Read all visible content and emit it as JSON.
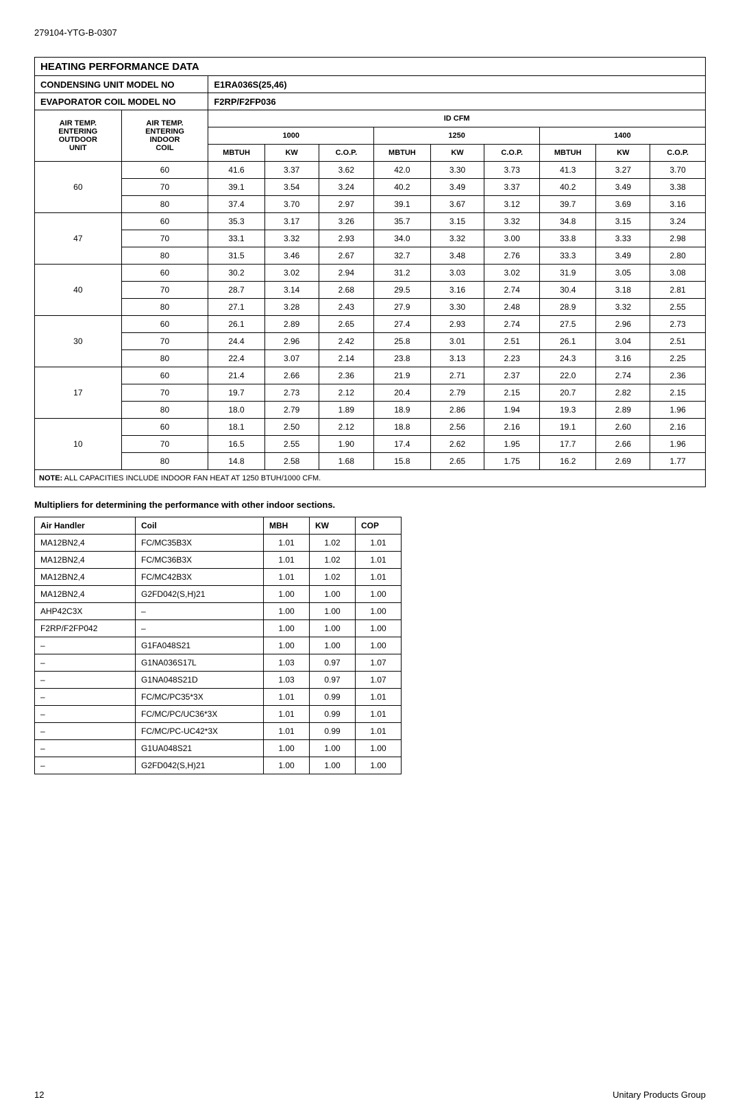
{
  "doc_id": "279104-YTG-B-0307",
  "table1": {
    "title": "HEATING PERFORMANCE DATA",
    "cond_label": "CONDENSING UNIT MODEL NO",
    "cond_value": "E1RA036S(25,46)",
    "evap_label": "EVAPORATOR COIL MODEL NO",
    "evap_value": "F2RP/F2FP036",
    "air_outdoor": "AIR TEMP. ENTERING OUTDOOR UNIT",
    "air_indoor": "AIR TEMP. ENTERING INDOOR COIL",
    "idcfm": "ID CFM",
    "cfm_cols": [
      "1000",
      "1250",
      "1400"
    ],
    "sub_cols": [
      "MBTUH",
      "KW",
      "C.O.P."
    ],
    "groups": [
      {
        "out": "60",
        "rows": [
          {
            "in": "60",
            "v": [
              "41.6",
              "3.37",
              "3.62",
              "42.0",
              "3.30",
              "3.73",
              "41.3",
              "3.27",
              "3.70"
            ]
          },
          {
            "in": "70",
            "v": [
              "39.1",
              "3.54",
              "3.24",
              "40.2",
              "3.49",
              "3.37",
              "40.2",
              "3.49",
              "3.38"
            ]
          },
          {
            "in": "80",
            "v": [
              "37.4",
              "3.70",
              "2.97",
              "39.1",
              "3.67",
              "3.12",
              "39.7",
              "3.69",
              "3.16"
            ]
          }
        ]
      },
      {
        "out": "47",
        "rows": [
          {
            "in": "60",
            "v": [
              "35.3",
              "3.17",
              "3.26",
              "35.7",
              "3.15",
              "3.32",
              "34.8",
              "3.15",
              "3.24"
            ]
          },
          {
            "in": "70",
            "v": [
              "33.1",
              "3.32",
              "2.93",
              "34.0",
              "3.32",
              "3.00",
              "33.8",
              "3.33",
              "2.98"
            ]
          },
          {
            "in": "80",
            "v": [
              "31.5",
              "3.46",
              "2.67",
              "32.7",
              "3.48",
              "2.76",
              "33.3",
              "3.49",
              "2.80"
            ]
          }
        ]
      },
      {
        "out": "40",
        "rows": [
          {
            "in": "60",
            "v": [
              "30.2",
              "3.02",
              "2.94",
              "31.2",
              "3.03",
              "3.02",
              "31.9",
              "3.05",
              "3.08"
            ]
          },
          {
            "in": "70",
            "v": [
              "28.7",
              "3.14",
              "2.68",
              "29.5",
              "3.16",
              "2.74",
              "30.4",
              "3.18",
              "2.81"
            ]
          },
          {
            "in": "80",
            "v": [
              "27.1",
              "3.28",
              "2.43",
              "27.9",
              "3.30",
              "2.48",
              "28.9",
              "3.32",
              "2.55"
            ]
          }
        ]
      },
      {
        "out": "30",
        "rows": [
          {
            "in": "60",
            "v": [
              "26.1",
              "2.89",
              "2.65",
              "27.4",
              "2.93",
              "2.74",
              "27.5",
              "2.96",
              "2.73"
            ]
          },
          {
            "in": "70",
            "v": [
              "24.4",
              "2.96",
              "2.42",
              "25.8",
              "3.01",
              "2.51",
              "26.1",
              "3.04",
              "2.51"
            ]
          },
          {
            "in": "80",
            "v": [
              "22.4",
              "3.07",
              "2.14",
              "23.8",
              "3.13",
              "2.23",
              "24.3",
              "3.16",
              "2.25"
            ]
          }
        ]
      },
      {
        "out": "17",
        "rows": [
          {
            "in": "60",
            "v": [
              "21.4",
              "2.66",
              "2.36",
              "21.9",
              "2.71",
              "2.37",
              "22.0",
              "2.74",
              "2.36"
            ]
          },
          {
            "in": "70",
            "v": [
              "19.7",
              "2.73",
              "2.12",
              "20.4",
              "2.79",
              "2.15",
              "20.7",
              "2.82",
              "2.15"
            ]
          },
          {
            "in": "80",
            "v": [
              "18.0",
              "2.79",
              "1.89",
              "18.9",
              "2.86",
              "1.94",
              "19.3",
              "2.89",
              "1.96"
            ]
          }
        ]
      },
      {
        "out": "10",
        "rows": [
          {
            "in": "60",
            "v": [
              "18.1",
              "2.50",
              "2.12",
              "18.8",
              "2.56",
              "2.16",
              "19.1",
              "2.60",
              "2.16"
            ]
          },
          {
            "in": "70",
            "v": [
              "16.5",
              "2.55",
              "1.90",
              "17.4",
              "2.62",
              "1.95",
              "17.7",
              "2.66",
              "1.96"
            ]
          },
          {
            "in": "80",
            "v": [
              "14.8",
              "2.58",
              "1.68",
              "15.8",
              "2.65",
              "1.75",
              "16.2",
              "2.69",
              "1.77"
            ]
          }
        ]
      }
    ],
    "note_label": "NOTE:",
    "note_text": " ALL CAPACITIES INCLUDE INDOOR FAN HEAT AT 1250 BTUH/1000 CFM."
  },
  "subhead": "Multipliers for determining the performance with other indoor sections.",
  "table2": {
    "cols": [
      "Air Handler",
      "Coil",
      "MBH",
      "KW",
      "COP"
    ],
    "rows": [
      [
        "MA12BN2,4",
        "FC/MC35B3X",
        "1.01",
        "1.02",
        "1.01"
      ],
      [
        "MA12BN2,4",
        "FC/MC36B3X",
        "1.01",
        "1.02",
        "1.01"
      ],
      [
        "MA12BN2,4",
        "FC/MC42B3X",
        "1.01",
        "1.02",
        "1.01"
      ],
      [
        "MA12BN2,4",
        "G2FD042(S,H)21",
        "1.00",
        "1.00",
        "1.00"
      ],
      [
        "AHP42C3X",
        "–",
        "1.00",
        "1.00",
        "1.00"
      ],
      [
        "F2RP/F2FP042",
        "–",
        "1.00",
        "1.00",
        "1.00"
      ],
      [
        "–",
        "G1FA048S21",
        "1.00",
        "1.00",
        "1.00"
      ],
      [
        "–",
        "G1NA036S17L",
        "1.03",
        "0.97",
        "1.07"
      ],
      [
        "–",
        "G1NA048S21D",
        "1.03",
        "0.97",
        "1.07"
      ],
      [
        "–",
        "FC/MC/PC35*3X",
        "1.01",
        "0.99",
        "1.01"
      ],
      [
        "–",
        "FC/MC/PC/UC36*3X",
        "1.01",
        "0.99",
        "1.01"
      ],
      [
        "–",
        "FC/MC/PC-UC42*3X",
        "1.01",
        "0.99",
        "1.01"
      ],
      [
        "–",
        "G1UA048S21",
        "1.00",
        "1.00",
        "1.00"
      ],
      [
        "–",
        "G2FD042(S,H)21",
        "1.00",
        "1.00",
        "1.00"
      ]
    ]
  },
  "footer": {
    "page": "12",
    "company": "Unitary Products Group"
  }
}
